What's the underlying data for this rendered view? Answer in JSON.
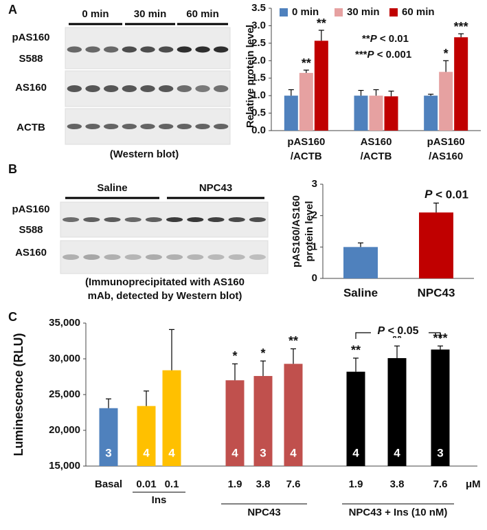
{
  "panel_labels": [
    "A",
    "B",
    "C"
  ],
  "blots": [
    {
      "lane_groups": [
        "0 min",
        "30 min",
        "60 min"
      ],
      "rows": [
        [
          "pAS160",
          "S588"
        ],
        [
          "AS160"
        ],
        [
          "ACTB"
        ]
      ],
      "caption": [
        "(Western blot)"
      ]
    },
    {
      "lane_groups": [
        "Saline",
        "NPC43"
      ],
      "rows": [
        [
          "pAS160",
          "S588"
        ],
        [
          "AS160"
        ]
      ],
      "caption": [
        "(Immunoprecipitated with AS160",
        "mAb, detected by Western blot)"
      ]
    }
  ],
  "chart_data": [
    {
      "type": "grouped-bar",
      "y_label": "Relative protein level",
      "categories": [
        [
          "pAS160",
          "/ACTB"
        ],
        [
          "AS160",
          "/ACTB"
        ],
        [
          "pAS160",
          "/AS160"
        ]
      ],
      "series": [
        {
          "name": "0 min",
          "color": "#4f81bd",
          "values": [
            1.0,
            1.0,
            1.0
          ],
          "errors": [
            0.17,
            0.15,
            0.04
          ],
          "significance": [
            null,
            null,
            null
          ]
        },
        {
          "name": "30 min",
          "color": "#e6a1a1",
          "values": [
            1.65,
            1.0,
            1.68
          ],
          "errors": [
            0.08,
            0.17,
            0.32
          ],
          "significance": [
            "**",
            null,
            "*"
          ]
        },
        {
          "name": "60 min",
          "color": "#c00000",
          "values": [
            2.57,
            0.98,
            2.67
          ],
          "errors": [
            0.3,
            0.15,
            0.1
          ],
          "significance": [
            "**",
            null,
            "***"
          ]
        }
      ],
      "annotations": [
        "**P < 0.01",
        "***P < 0.001"
      ],
      "ylim": [
        0,
        3.5
      ],
      "yticks": [
        {
          "value": 0,
          "label": "0.0"
        },
        0.5,
        {
          "value": 1,
          "label": "1.0"
        },
        1.5,
        {
          "value": 2,
          "label": "2.0"
        },
        2.5,
        {
          "value": 3,
          "label": "3.0"
        },
        3.5
      ],
      "legend": "top"
    },
    {
      "type": "bar",
      "y_label": [
        "pAS160/AS160",
        "protein level"
      ],
      "categories": [
        "Saline",
        "NPC43"
      ],
      "values": [
        1.0,
        2.1
      ],
      "errors": [
        0.13,
        0.3
      ],
      "colors": [
        "#4f81bd",
        "#c00000"
      ],
      "annotations": [
        "P < 0.01"
      ],
      "ylim": [
        0,
        3
      ],
      "yticks": [
        0,
        1,
        2,
        3
      ]
    },
    {
      "type": "bar",
      "y_label": "Luminescence (RLU)",
      "categories": [
        "Basal",
        "0.01",
        "0.1",
        "1.9",
        "3.8",
        "7.6",
        "1.9",
        "3.8",
        "7.6"
      ],
      "unit": "μM",
      "groups": [
        "Ins",
        "NPC43",
        "NPC43 + Ins (10 nM)"
      ],
      "values": [
        23100,
        23400,
        28400,
        27000,
        27600,
        29300,
        28200,
        30100,
        31300
      ],
      "errors": [
        1300,
        2100,
        5700,
        2300,
        2100,
        2100,
        1900,
        1700,
        500
      ],
      "colors": [
        "#4f81bd",
        "#ffc000",
        "#ffc000",
        "#c0504d",
        "#c0504d",
        "#c0504d",
        "#000000",
        "#000000",
        "#000000"
      ],
      "counts": [
        3,
        4,
        4,
        4,
        3,
        4,
        4,
        4,
        3
      ],
      "significance": [
        null,
        null,
        null,
        "*",
        "*",
        "**",
        "**",
        "**",
        "***"
      ],
      "comparison_label": "P < 0.05",
      "ylim": [
        15000,
        35000
      ],
      "yticks": [
        {
          "value": 15000,
          "label": "15,000"
        },
        {
          "value": 20000,
          "label": "20,000"
        },
        {
          "value": 25000,
          "label": "25,000"
        },
        {
          "value": 30000,
          "label": "30,000"
        },
        {
          "value": 35000,
          "label": "35,000"
        }
      ]
    }
  ]
}
